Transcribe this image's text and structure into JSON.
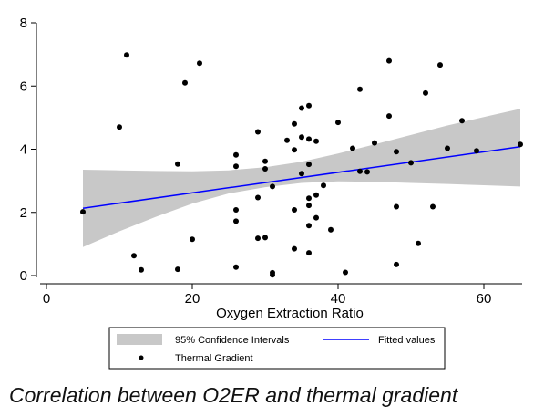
{
  "caption": "Correlation between O2ER and thermal gradient",
  "chart_data": {
    "type": "scatter",
    "xlabel": "Oxygen Extraction Ratio",
    "ylabel": "",
    "xlim": [
      0,
      65
    ],
    "ylim": [
      0,
      8
    ],
    "xticks": [
      0,
      20,
      40,
      60
    ],
    "yticks": [
      0,
      2,
      4,
      6,
      8
    ],
    "grid": false,
    "colors": {
      "points": "#000000",
      "fit_line": "#0000ff",
      "ci_band": "#c8c8c8"
    },
    "legend": {
      "placement": "bottom",
      "entries": [
        "95% Confidence Intervals",
        "Fitted values",
        "Thermal Gradient"
      ]
    },
    "series": [
      {
        "name": "Thermal Gradient",
        "type": "scatter",
        "points": [
          [
            5,
            2.02
          ],
          [
            10,
            4.7
          ],
          [
            11,
            6.98
          ],
          [
            12,
            0.63
          ],
          [
            13,
            0.18
          ],
          [
            18,
            3.53
          ],
          [
            18,
            0.2
          ],
          [
            19,
            6.1
          ],
          [
            20,
            1.15
          ],
          [
            21,
            6.72
          ],
          [
            26,
            3.82
          ],
          [
            26,
            3.46
          ],
          [
            26,
            2.08
          ],
          [
            26,
            1.72
          ],
          [
            26,
            0.27
          ],
          [
            29,
            4.55
          ],
          [
            29,
            2.47
          ],
          [
            29,
            1.18
          ],
          [
            30,
            3.62
          ],
          [
            30,
            3.38
          ],
          [
            30,
            1.2
          ],
          [
            31,
            2.82
          ],
          [
            31,
            0.09
          ],
          [
            31,
            0.02
          ],
          [
            33,
            4.28
          ],
          [
            34,
            4.8
          ],
          [
            34,
            3.98
          ],
          [
            34,
            2.08
          ],
          [
            34,
            0.85
          ],
          [
            35,
            5.3
          ],
          [
            35,
            4.38
          ],
          [
            35,
            3.23
          ],
          [
            36,
            5.38
          ],
          [
            36,
            4.32
          ],
          [
            36,
            3.52
          ],
          [
            36,
            2.45
          ],
          [
            36,
            2.22
          ],
          [
            36,
            1.58
          ],
          [
            36,
            0.72
          ],
          [
            37,
            4.25
          ],
          [
            37,
            2.55
          ],
          [
            37,
            1.83
          ],
          [
            38,
            2.85
          ],
          [
            39,
            1.45
          ],
          [
            40,
            4.85
          ],
          [
            41,
            0.1
          ],
          [
            42,
            4.03
          ],
          [
            43,
            5.9
          ],
          [
            43,
            3.3
          ],
          [
            44,
            3.28
          ],
          [
            45,
            4.2
          ],
          [
            47,
            6.8
          ],
          [
            47,
            5.05
          ],
          [
            48,
            3.92
          ],
          [
            48,
            2.18
          ],
          [
            48,
            0.35
          ],
          [
            50,
            3.57
          ],
          [
            51,
            1.02
          ],
          [
            52,
            5.78
          ],
          [
            53,
            2.18
          ],
          [
            54,
            6.67
          ],
          [
            55,
            4.03
          ],
          [
            57,
            4.9
          ],
          [
            59,
            3.95
          ],
          [
            65,
            4.15
          ]
        ]
      },
      {
        "name": "Fitted values",
        "type": "line",
        "points": [
          [
            5,
            2.13
          ],
          [
            65,
            4.08
          ]
        ]
      },
      {
        "name": "95% Confidence Intervals",
        "type": "area",
        "x": [
          5,
          10,
          15,
          20,
          25,
          30,
          35,
          40,
          45,
          50,
          55,
          60,
          65
        ],
        "upper": [
          3.35,
          3.33,
          3.31,
          3.3,
          3.33,
          3.43,
          3.6,
          3.86,
          4.15,
          4.45,
          4.75,
          5.02,
          5.28
        ],
        "lower": [
          0.9,
          1.4,
          1.86,
          2.28,
          2.6,
          2.8,
          2.93,
          2.98,
          2.97,
          2.93,
          2.9,
          2.86,
          2.82
        ]
      }
    ]
  }
}
